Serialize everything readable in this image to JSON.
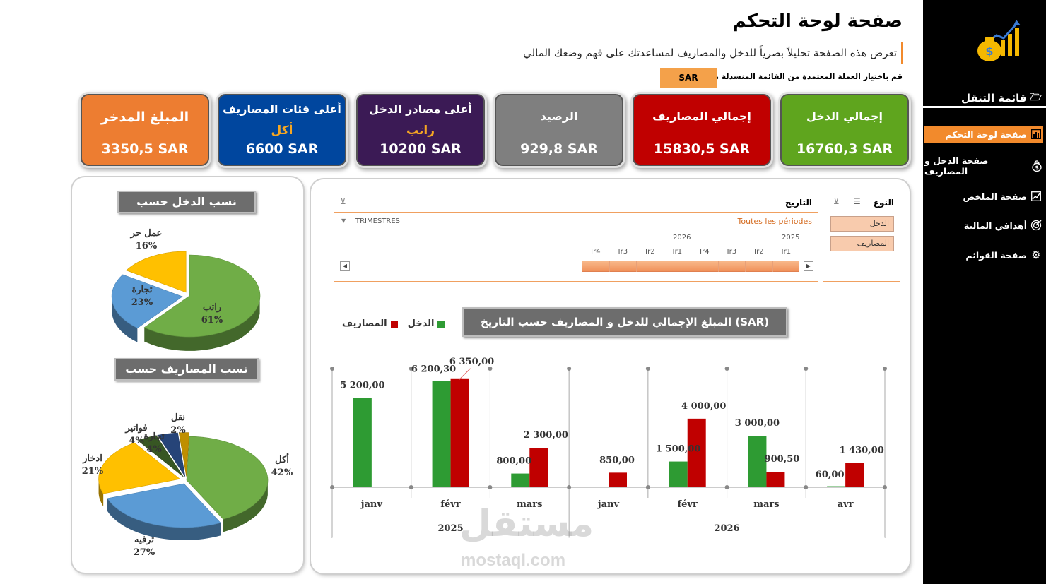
{
  "header": {
    "title": "صفحة لوحة التحكم",
    "subtitle": "تعرض هذه الصفحة تحليلاً بصرياً للدخل والمصاريف لمساعدتك على فهم وضعك المالي",
    "currency_label": "قم باختيار العملة المعتمدة من القائمة المنسدلة هنا",
    "currency_value": "SAR"
  },
  "sidebar": {
    "nav_title": "قائمة التنقل",
    "items": [
      {
        "label": "صفحة لوحة التحكم",
        "icon": "dashboard-icon",
        "active": true
      },
      {
        "label": "صفحة الدخل و المصاريف",
        "icon": "money-bag-icon",
        "active": false
      },
      {
        "label": "صفحة الملخص",
        "icon": "chart-line-icon",
        "active": false
      },
      {
        "label": "أهدافي المالية",
        "icon": "target-icon",
        "active": false
      },
      {
        "label": "صفحة القوائم",
        "icon": "gear-icon",
        "active": false
      }
    ]
  },
  "kpis": [
    {
      "label": "إجمالي الدخل",
      "value": "16760,3 SAR",
      "color": "#5FA51E"
    },
    {
      "label": "إجمالي المصاريف",
      "value": "15830,5 SAR",
      "color": "#C00000"
    },
    {
      "label": "الرصيد",
      "value": "929,8 SAR",
      "color": "#7F7F7F"
    },
    {
      "label": "أعلى مصادر الدخل",
      "sub": "راتب",
      "value": "10200 SAR",
      "color": "#3B1A55"
    },
    {
      "label": "أعلى فئات المصاريف",
      "sub": "أكل",
      "value": "6600 SAR",
      "color": "#00469E"
    },
    {
      "label": "المبلغ المدخر",
      "value": "3350,5 SAR",
      "color": "#ED7D31"
    }
  ],
  "income_pie": {
    "title": "نسب الدخل حسب المصادر",
    "slices": [
      {
        "name": "راتب",
        "pct": "61%",
        "value": 61,
        "color": "#70AD47"
      },
      {
        "name": "تجارة",
        "pct": "23%",
        "value": 23,
        "color": "#5B9BD5"
      },
      {
        "name": "عمل حر",
        "pct": "16%",
        "value": 16,
        "color": "#FFC000"
      }
    ]
  },
  "expense_pie": {
    "title": "نسب المصاريف حسب النوع",
    "slices": [
      {
        "name": "أكل",
        "pct": "42%",
        "value": 42,
        "color": "#70AD47"
      },
      {
        "name": "ترفيه",
        "pct": "27%",
        "value": 27,
        "color": "#5B9BD5"
      },
      {
        "name": "ادخار",
        "pct": "21%",
        "value": 21,
        "color": "#FFC000"
      },
      {
        "name": "فواتير",
        "pct": "4%",
        "value": 4,
        "color": "#375623"
      },
      {
        "name": "تجارة",
        "pct": "4%",
        "value": 4,
        "color": "#264478"
      },
      {
        "name": "نقل",
        "pct": "2%",
        "value": 2,
        "color": "#BF8F00"
      }
    ]
  },
  "type_slicer": {
    "title": "النوع",
    "items": [
      "الدخل",
      "المصاريف"
    ]
  },
  "date_slicer": {
    "title": "التاريخ",
    "all_periods": "Toutes les périodes",
    "level": "TRIMESTRES",
    "years": [
      "2026",
      "2025"
    ],
    "quarters": [
      "Tr4",
      "Tr3",
      "Tr2",
      "Tr1",
      "Tr4",
      "Tr3",
      "Tr2",
      "Tr1"
    ]
  },
  "chart_data": {
    "type": "bar",
    "title": "المبلغ الإجمالي للدخل و المصاريف حسب التاريخ (SAR)",
    "categories": [
      "janv",
      "févr",
      "mars",
      "janv",
      "févr",
      "mars",
      "avr"
    ],
    "groups": [
      {
        "label": "2025",
        "categories": [
          "janv",
          "févr",
          "mars"
        ]
      },
      {
        "label": "2026",
        "categories": [
          "janv",
          "févr",
          "mars",
          "avr"
        ]
      }
    ],
    "series": [
      {
        "name": "الدخل",
        "color": "#2E9B33",
        "values": [
          5200,
          6200.3,
          800,
          null,
          1500,
          3000,
          60
        ],
        "labels": [
          "5 200,00",
          "6 200,30",
          "800,00",
          "",
          "1 500,00",
          "3 000,00",
          "60,00"
        ]
      },
      {
        "name": "المصاريف",
        "color": "#C00000",
        "values": [
          null,
          6350,
          2300,
          850,
          4000,
          900.5,
          1430
        ],
        "labels": [
          "",
          "6 350,00",
          "2 300,00",
          "850,00",
          "4 000,00",
          "900,50",
          "1 430,00"
        ]
      }
    ],
    "ylim": [
      0,
      7000
    ],
    "grid": false,
    "legend": "top-left"
  },
  "watermark": {
    "arabic": "مستقل",
    "latin": "mostaql.com"
  }
}
